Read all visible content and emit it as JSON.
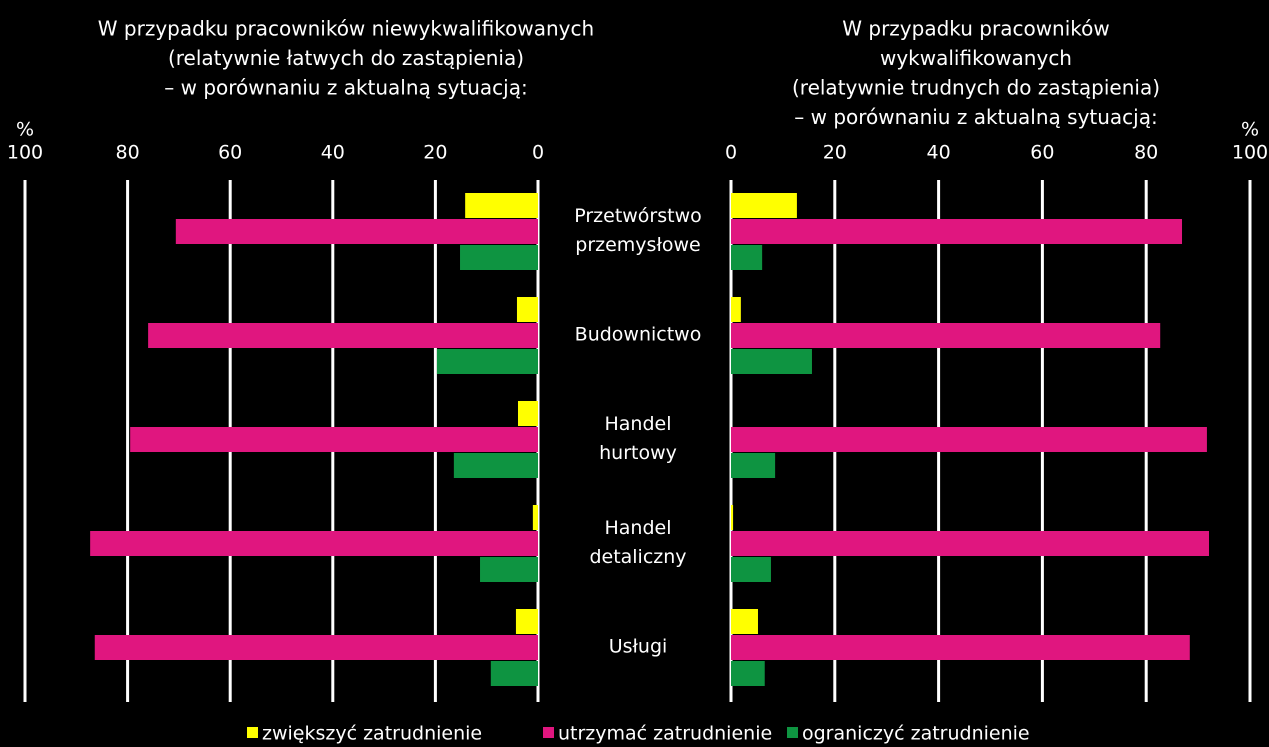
{
  "categories": [
    [
      "Przetwórstwo",
      "przemysłowe"
    ],
    [
      "Budownictwo"
    ],
    [
      "Handel",
      "hurtowy"
    ],
    [
      "Handel",
      "detaliczny"
    ],
    [
      "Usługi"
    ]
  ],
  "chart_data": [
    {
      "type": "bar",
      "orientation": "horizontal",
      "x_reversed": true,
      "title": [
        "W przypadku pracowników niewykwalifikowanych",
        "(relatywnie łatwych do zastąpienia)",
        "– w porównaniu z aktualną sytuacją:"
      ],
      "xlabel": "%",
      "xlim": [
        0,
        100
      ],
      "xticks": [
        0,
        20,
        40,
        60,
        80,
        100
      ],
      "grid": true,
      "series": [
        {
          "name": "zwiększyć zatrudnienie",
          "color": "#ffff00",
          "values": [
            14.2,
            4.1,
            3.9,
            1,
            4.3
          ]
        },
        {
          "name": "utrzymać zatrudnienie",
          "color": "#e0167f",
          "values": [
            70.6,
            76,
            79.5,
            87.3,
            86.4
          ]
        },
        {
          "name": "ograniczyć zatrudnienie",
          "color": "#0e9441",
          "values": [
            15.2,
            19.7,
            16.4,
            11.3,
            9.2
          ]
        }
      ]
    },
    {
      "type": "bar",
      "orientation": "horizontal",
      "x_reversed": false,
      "title": [
        "W przypadku pracowników",
        "wykwalifikowanych",
        "(relatywnie trudnych do zastąpienia)",
        "– w porównaniu z aktualną sytuacją:"
      ],
      "xlabel": "%",
      "xlim": [
        0,
        100
      ],
      "xticks": [
        0,
        20,
        40,
        60,
        80,
        100
      ],
      "grid": true,
      "series": [
        {
          "color": "#ffff00",
          "values": [
            12.7,
            1.9,
            0,
            0.4,
            5.2
          ]
        },
        {
          "color": "#e0167f",
          "values": [
            86.9,
            82.7,
            91.7,
            92.1,
            88.4
          ]
        },
        {
          "color": "#0e9441",
          "values": [
            6,
            15.6,
            8.5,
            7.7,
            6.5
          ]
        }
      ]
    }
  ]
}
